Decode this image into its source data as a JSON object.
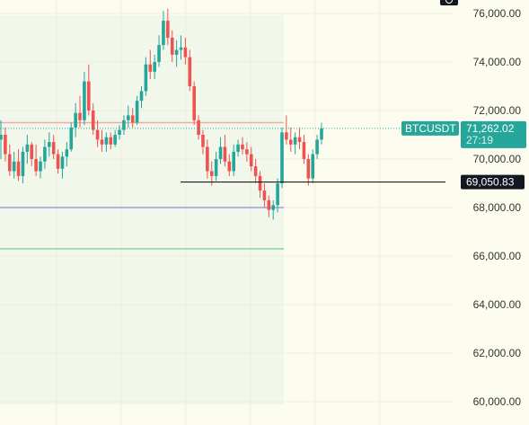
{
  "chart_data": {
    "type": "candlestick",
    "symbol": "BTCUSDT",
    "price_axis": {
      "ticks": [
        "76,000.00",
        "74,000.00",
        "72,000.00",
        "70,000.00",
        "68,000.00",
        "66,000.00",
        "64,000.00",
        "62,000.00",
        "60,000.00"
      ],
      "ylim": [
        59500,
        76600
      ]
    },
    "last_price": {
      "symbol_label": "BTCUSDT",
      "value": 71262.02,
      "value_label": "71,262.02",
      "countdown": "27:19"
    },
    "crosshair_price": {
      "value": 69050.83,
      "value_label": "69,050.83"
    },
    "horizontal_levels": [
      {
        "value": 71500,
        "color": "#f2a9a9"
      },
      {
        "value": 68000,
        "color": "#9f9fd6"
      },
      {
        "value": 66300,
        "color": "#8fd49a"
      }
    ],
    "candles": [
      [
        70800,
        71600,
        70000,
        71000
      ],
      [
        71000,
        71300,
        69900,
        70200
      ],
      [
        70200,
        70600,
        69300,
        69500
      ],
      [
        69500,
        70300,
        69200,
        69900
      ],
      [
        69900,
        70400,
        69100,
        69300
      ],
      [
        69300,
        70500,
        69000,
        70300
      ],
      [
        70300,
        71000,
        69800,
        70600
      ],
      [
        70600,
        70700,
        69700,
        70000
      ],
      [
        70000,
        70600,
        69300,
        69500
      ],
      [
        69500,
        70100,
        69200,
        69900
      ],
      [
        69900,
        70800,
        69600,
        70500
      ],
      [
        70500,
        71100,
        70100,
        70700
      ],
      [
        70700,
        71000,
        70000,
        70200
      ],
      [
        70200,
        70400,
        69400,
        69600
      ],
      [
        69600,
        70300,
        69200,
        70100
      ],
      [
        70100,
        70700,
        69700,
        70400
      ],
      [
        70400,
        71500,
        70300,
        71300
      ],
      [
        71300,
        72300,
        70900,
        71900
      ],
      [
        71900,
        72600,
        71300,
        71600
      ],
      [
        71600,
        73600,
        71400,
        73200
      ],
      [
        73200,
        73900,
        71800,
        72000
      ],
      [
        72000,
        72300,
        71000,
        71200
      ],
      [
        71200,
        71600,
        70500,
        70800
      ],
      [
        70800,
        71200,
        70300,
        70600
      ],
      [
        70600,
        71100,
        70300,
        70900
      ],
      [
        70900,
        71100,
        70400,
        70600
      ],
      [
        70600,
        71200,
        70500,
        71000
      ],
      [
        71000,
        71400,
        70800,
        71200
      ],
      [
        71200,
        71800,
        71000,
        71600
      ],
      [
        71600,
        72200,
        71300,
        71800
      ],
      [
        71800,
        72100,
        71300,
        71500
      ],
      [
        71500,
        72600,
        71400,
        72400
      ],
      [
        72400,
        73000,
        72100,
        72800
      ],
      [
        72800,
        74200,
        72600,
        73900
      ],
      [
        73900,
        74500,
        73300,
        73600
      ],
      [
        73600,
        74300,
        73300,
        74000
      ],
      [
        74000,
        75100,
        73800,
        74700
      ],
      [
        74700,
        76100,
        74500,
        75700
      ],
      [
        75700,
        76200,
        74700,
        75000
      ],
      [
        75000,
        75300,
        74000,
        74300
      ],
      [
        74300,
        74900,
        73800,
        74500
      ],
      [
        74500,
        75100,
        74100,
        74600
      ],
      [
        74600,
        75000,
        73900,
        74200
      ],
      [
        74200,
        74500,
        72800,
        73000
      ],
      [
        73000,
        73200,
        71400,
        71600
      ],
      [
        71600,
        71800,
        70800,
        71000
      ],
      [
        71000,
        71200,
        70200,
        70500
      ],
      [
        70500,
        70800,
        69200,
        69500
      ],
      [
        69500,
        69900,
        68900,
        69300
      ],
      [
        69300,
        70300,
        69100,
        70000
      ],
      [
        70000,
        70900,
        69800,
        70500
      ],
      [
        70500,
        71000,
        69700,
        69900
      ],
      [
        69900,
        70200,
        69300,
        69500
      ],
      [
        69500,
        70600,
        69300,
        70300
      ],
      [
        70300,
        70800,
        70100,
        70600
      ],
      [
        70600,
        70900,
        70200,
        70400
      ],
      [
        70400,
        70700,
        69900,
        70200
      ],
      [
        70200,
        70500,
        69500,
        69700
      ],
      [
        69700,
        70000,
        69000,
        69300
      ],
      [
        69300,
        69500,
        68400,
        68700
      ],
      [
        68700,
        69000,
        68000,
        68300
      ],
      [
        68300,
        68500,
        67600,
        67900
      ],
      [
        67900,
        68300,
        67500,
        68100
      ],
      [
        68100,
        69200,
        67800,
        69000
      ],
      [
        69000,
        71300,
        68800,
        71100
      ],
      [
        71100,
        71800,
        70600,
        70800
      ],
      [
        70800,
        71300,
        70300,
        70600
      ],
      [
        70600,
        71100,
        70200,
        70900
      ],
      [
        70900,
        71300,
        70400,
        70700
      ],
      [
        70700,
        71000,
        69800,
        70000
      ],
      [
        70000,
        70200,
        68900,
        69200
      ],
      [
        69200,
        70400,
        69000,
        70200
      ],
      [
        70200,
        71000,
        70000,
        70800
      ],
      [
        70800,
        71500,
        70600,
        71262.02
      ]
    ]
  }
}
